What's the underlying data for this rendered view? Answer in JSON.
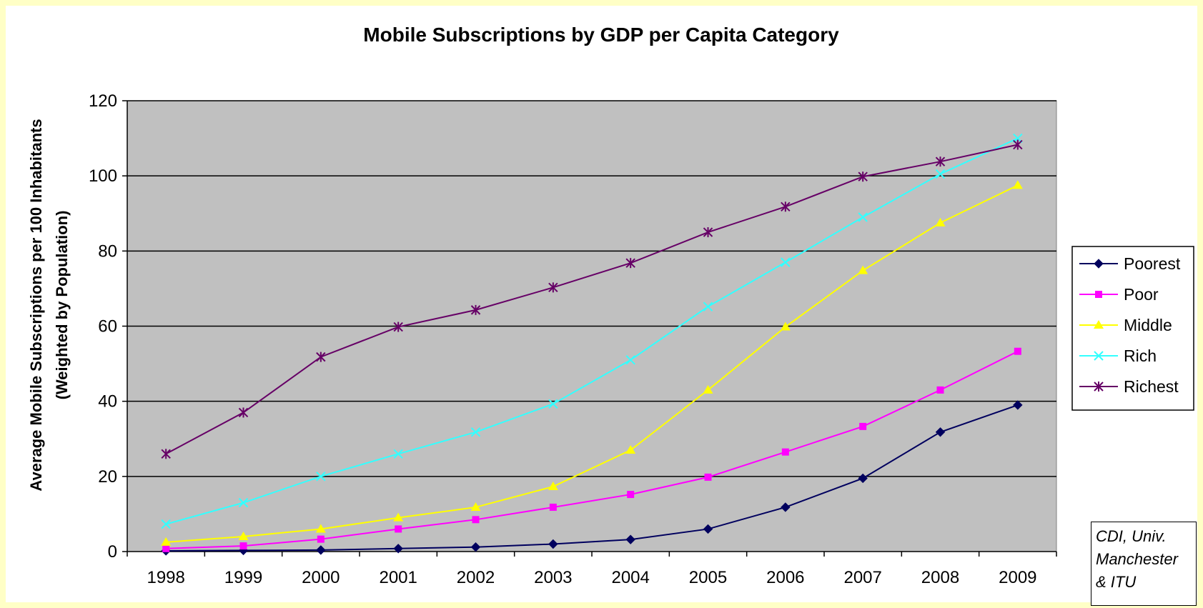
{
  "chart_data": {
    "type": "line",
    "title": "Mobile Subscriptions by GDP per Capita Category",
    "ylabel_line1": "Average Mobile Subscriptions per 100 Inhabitants",
    "ylabel_line2": "(Weighted by Population)",
    "xlabel": "",
    "categories": [
      "1998",
      "1999",
      "2000",
      "2001",
      "2002",
      "2003",
      "2004",
      "2005",
      "2006",
      "2007",
      "2008",
      "2009"
    ],
    "ylim": [
      0,
      120
    ],
    "yticks": [
      "0",
      "20",
      "40",
      "60",
      "80",
      "100",
      "120"
    ],
    "grid": true,
    "legend_position": "right",
    "series": [
      {
        "name": "Poorest",
        "color": "#00005e",
        "marker": "diamond",
        "values": [
          0.2,
          0.3,
          0.4,
          0.8,
          1.2,
          2.0,
          3.2,
          6.0,
          11.8,
          19.5,
          31.8,
          39.0
        ]
      },
      {
        "name": "Poor",
        "color": "#ff00ff",
        "marker": "square",
        "values": [
          0.8,
          1.5,
          3.3,
          6.0,
          8.5,
          11.8,
          15.2,
          19.8,
          26.5,
          33.3,
          43.0,
          53.3
        ]
      },
      {
        "name": "Middle",
        "color": "#ffff00",
        "marker": "triangle",
        "values": [
          2.5,
          4.0,
          6.0,
          9.0,
          11.8,
          17.3,
          27.0,
          43.0,
          59.8,
          74.8,
          87.5,
          97.5
        ]
      },
      {
        "name": "Rich",
        "color": "#33ffff",
        "marker": "x",
        "values": [
          7.3,
          13.0,
          20.0,
          26.0,
          31.8,
          39.3,
          51.0,
          65.2,
          77.0,
          89.0,
          100.5,
          110.0
        ]
      },
      {
        "name": "Richest",
        "color": "#660066",
        "marker": "star",
        "values": [
          26.0,
          37.0,
          51.8,
          59.8,
          64.3,
          70.3,
          76.8,
          85.0,
          91.8,
          99.8,
          103.8,
          108.3
        ]
      }
    ]
  },
  "credit": {
    "line1": "CDI, Univ.",
    "line2": "Manchester",
    "line3": "& ITU"
  }
}
